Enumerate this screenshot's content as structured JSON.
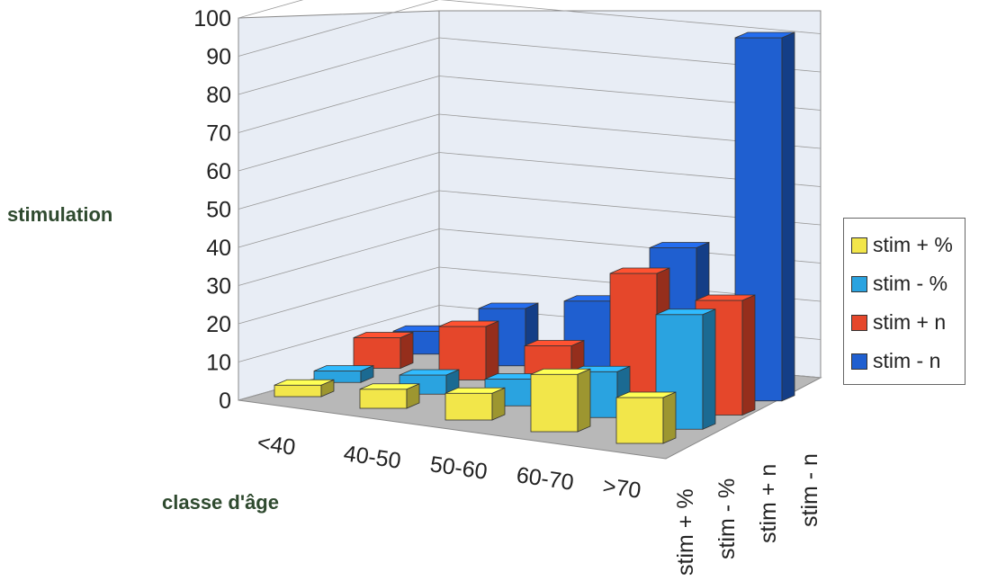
{
  "chart_data": {
    "type": "bar",
    "subtype": "3d-column",
    "ylabel": "stimulation",
    "xlabel": "classe d'âge",
    "categories": [
      "<40",
      "40-50",
      "50-60",
      "60-70",
      ">70"
    ],
    "y_ticks": [
      "0",
      "10",
      "20",
      "30",
      "40",
      "50",
      "60",
      "70",
      "80",
      "90",
      "100"
    ],
    "ylim": [
      0,
      100
    ],
    "grid": true,
    "legend_position": "right",
    "series": [
      {
        "name": "stim + %",
        "color": "#f2e64a",
        "values": [
          3,
          5,
          7,
          15,
          12
        ]
      },
      {
        "name": "stim - %",
        "color": "#2aa3e0",
        "values": [
          3,
          5,
          7,
          12,
          30
        ]
      },
      {
        "name": "stim + n",
        "color": "#e5472b",
        "values": [
          8,
          14,
          12,
          34,
          30
        ]
      },
      {
        "name": "stim - n",
        "color": "#1f5fd0",
        "values": [
          6,
          15,
          20,
          37,
          95
        ]
      }
    ]
  }
}
